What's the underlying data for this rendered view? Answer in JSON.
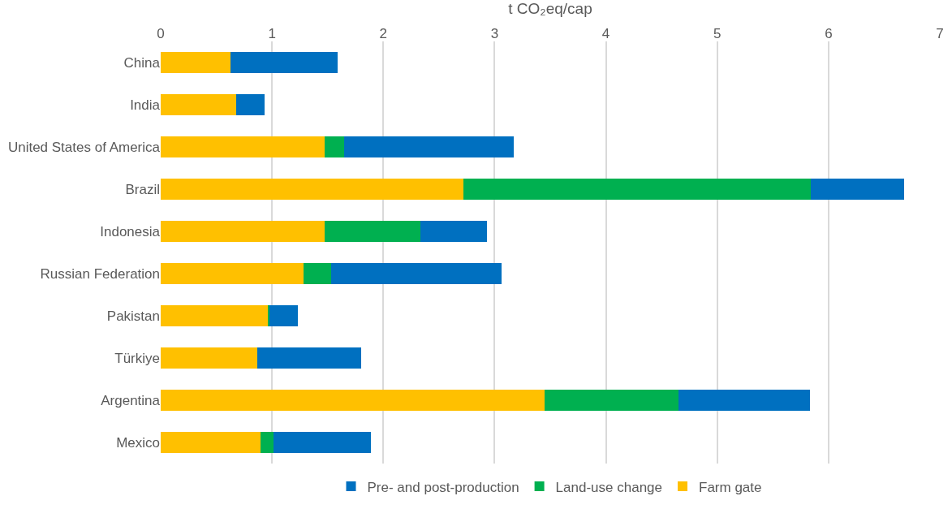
{
  "chart_data": {
    "type": "bar",
    "orientation": "horizontal",
    "stacked": true,
    "xlabel": "t CO₂eq/cap",
    "categories": [
      "China",
      "India",
      "United States of America",
      "Brazil",
      "Indonesia",
      "Russian Federation",
      "Pakistan",
      "Türkiye",
      "Argentina",
      "Mexico"
    ],
    "series": [
      {
        "name": "Farm gate",
        "color": "#ffc000",
        "values": [
          0.63,
          0.68,
          1.47,
          2.72,
          1.47,
          1.28,
          0.96,
          0.87,
          3.45,
          0.9
        ]
      },
      {
        "name": "Land-use change",
        "color": "#00b050",
        "values": [
          null,
          null,
          0.18,
          3.12,
          0.86,
          0.25,
          0.02,
          null,
          1.2,
          0.11
        ]
      },
      {
        "name": "Pre- and post-production",
        "color": "#0070c0",
        "values": [
          0.96,
          0.25,
          1.52,
          0.84,
          0.6,
          1.53,
          0.25,
          0.93,
          1.18,
          0.88
        ]
      }
    ],
    "xlim": [
      0,
      7
    ],
    "xticks": [
      0,
      1,
      2,
      3,
      4,
      5,
      6,
      7
    ],
    "grid": "x",
    "legend": "bottom"
  }
}
